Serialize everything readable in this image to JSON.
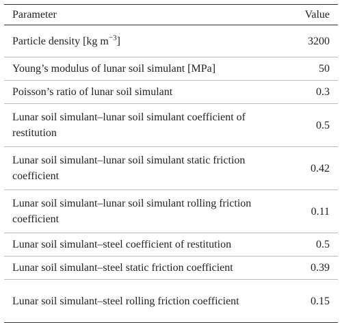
{
  "table": {
    "header": [
      "Parameter",
      "Value"
    ],
    "rows": [
      [
        {
          "text": "Particle density [kg m",
          "sup": "−3",
          "after": "]"
        },
        3200
      ],
      [
        "Young’s modulus of lunar soil simulant [MPa]",
        50
      ],
      [
        "Poisson’s ratio of lunar soil simulant",
        0.3
      ],
      [
        "Lunar soil simulant–lunar soil simulant coefficient of restitution",
        0.5
      ],
      [
        "Lunar soil simulant–lunar soil simulant static friction coefficient",
        0.42
      ],
      [
        "Lunar soil simulant–lunar soil simulant rolling friction coefficient",
        0.11
      ],
      [
        "Lunar soil simulant–steel coefficient of restitution",
        0.5
      ],
      [
        "Lunar soil simulant–steel static friction coefficient",
        0.39
      ],
      [
        "Lunar soil simulant–steel rolling friction coefficient",
        0.15
      ]
    ]
  }
}
